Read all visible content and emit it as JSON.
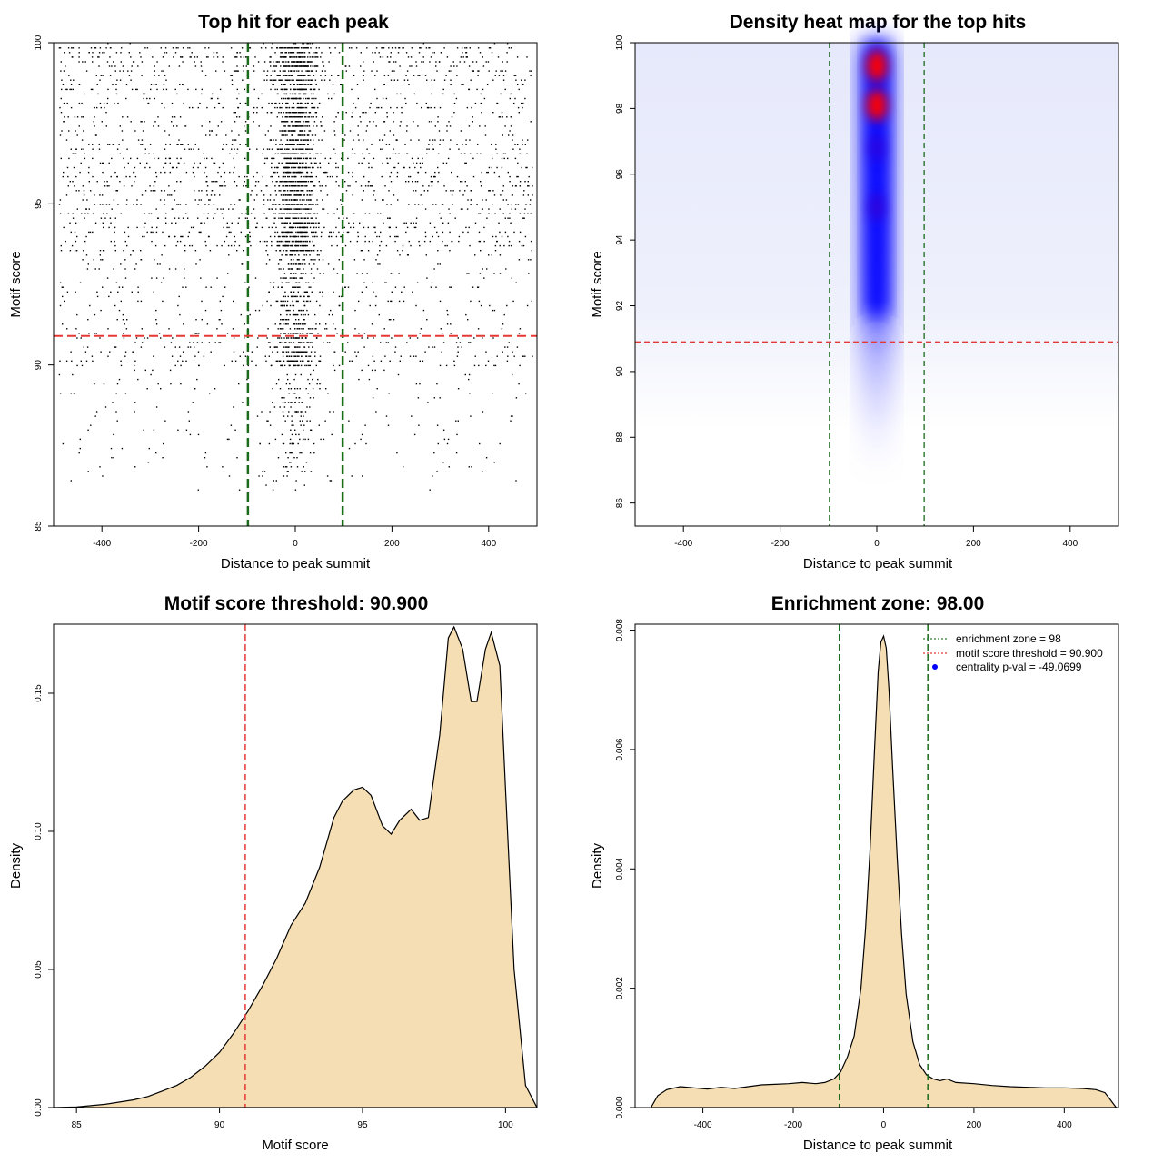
{
  "chart_data": [
    {
      "type": "scatter",
      "title": "Top hit for each peak",
      "xlabel": "Distance to peak summit",
      "ylabel": "Motif score",
      "xlim": [
        -500,
        500
      ],
      "ylim": [
        85,
        100
      ],
      "xticks": [
        -400,
        -200,
        0,
        200,
        400
      ],
      "yticks": [
        85,
        90,
        95,
        100
      ],
      "enrichment_zone": [
        -98,
        98
      ],
      "threshold": 90.9,
      "note": "several thousand points: dense column within +/-100 of summit, sparse background; few points below score 90"
    },
    {
      "type": "heatmap",
      "title": "Density heat map for the top hits",
      "xlabel": "Distance to peak summit",
      "ylabel": "Motif score",
      "xlim": [
        -500,
        500
      ],
      "ylim": [
        85.3,
        100
      ],
      "xticks": [
        -400,
        -200,
        0,
        200,
        400
      ],
      "yticks": [
        86,
        88,
        90,
        92,
        94,
        96,
        98,
        100
      ],
      "enrichment_zone": [
        -98,
        98
      ],
      "threshold": 90.9,
      "hotspots": [
        {
          "x": 0,
          "y": 99.3,
          "intensity": 1.0
        },
        {
          "x": 0,
          "y": 98.1,
          "intensity": 1.0
        },
        {
          "x": 0,
          "y": 95.0,
          "intensity": 0.7
        },
        {
          "x": 0,
          "y": 96.8,
          "intensity": 0.6
        }
      ]
    },
    {
      "type": "area",
      "title": "Motif score threshold: 90.900",
      "xlabel": "Motif score",
      "ylabel": "Density",
      "xlim": [
        84.2,
        101.1
      ],
      "ylim": [
        0,
        0.175
      ],
      "xticks": [
        85,
        90,
        95,
        100
      ],
      "yticks": [
        0.0,
        0.05,
        0.1,
        0.15
      ],
      "ytick_labels": [
        "0.00",
        "0.05",
        "0.10",
        "0.15"
      ],
      "threshold": 90.9,
      "x": [
        84.2,
        85.0,
        86.0,
        87.0,
        87.5,
        88.0,
        88.5,
        89.0,
        89.5,
        90.0,
        90.5,
        91.0,
        91.5,
        92.0,
        92.5,
        93.0,
        93.5,
        94.0,
        94.3,
        94.7,
        95.0,
        95.3,
        95.7,
        96.0,
        96.3,
        96.7,
        97.0,
        97.3,
        97.7,
        98.0,
        98.2,
        98.5,
        98.8,
        99.0,
        99.3,
        99.5,
        99.8,
        100.0,
        100.3,
        100.7,
        101.1
      ],
      "y": [
        0.0,
        0.0002,
        0.0012,
        0.0028,
        0.004,
        0.006,
        0.008,
        0.011,
        0.015,
        0.02,
        0.027,
        0.035,
        0.044,
        0.054,
        0.066,
        0.074,
        0.087,
        0.105,
        0.111,
        0.115,
        0.116,
        0.113,
        0.102,
        0.099,
        0.104,
        0.108,
        0.104,
        0.105,
        0.135,
        0.17,
        0.174,
        0.166,
        0.147,
        0.147,
        0.166,
        0.172,
        0.16,
        0.115,
        0.05,
        0.008,
        0.0
      ]
    },
    {
      "type": "area",
      "title": "Enrichment zone: 98.00",
      "xlabel": "Distance to peak summit",
      "ylabel": "Density",
      "xlim": [
        -550,
        520
      ],
      "ylim": [
        0,
        0.0081
      ],
      "xticks": [
        -400,
        -200,
        0,
        200,
        400
      ],
      "yticks": [
        0.0,
        0.002,
        0.004,
        0.006,
        0.008
      ],
      "ytick_labels": [
        "0.000",
        "0.002",
        "0.004",
        "0.006",
        "0.008"
      ],
      "enrichment_zone": [
        -98,
        98
      ],
      "legend": {
        "position": "top-right",
        "entries": [
          {
            "label": "enrichment zone = 98",
            "color": "#2e7d32",
            "style": "dotted"
          },
          {
            "label": "motif score threshold = 90.900",
            "color": "#e53935",
            "style": "dotted"
          },
          {
            "label": "centrality p-val = -49.0699",
            "color": "#0000ff",
            "style": "point"
          }
        ]
      },
      "x": [
        -515,
        -500,
        -480,
        -450,
        -420,
        -390,
        -360,
        -330,
        -300,
        -270,
        -240,
        -210,
        -180,
        -150,
        -130,
        -110,
        -95,
        -80,
        -65,
        -50,
        -40,
        -30,
        -20,
        -12,
        -6,
        0,
        6,
        12,
        20,
        30,
        40,
        50,
        65,
        80,
        95,
        110,
        125,
        140,
        160,
        200,
        240,
        280,
        320,
        360,
        400,
        440,
        470,
        490,
        500,
        515
      ],
      "y": [
        0.0,
        0.0002,
        0.0003,
        0.00035,
        0.00033,
        0.00031,
        0.00034,
        0.00032,
        0.00035,
        0.00038,
        0.00039,
        0.0004,
        0.00042,
        0.0004,
        0.00042,
        0.00048,
        0.0006,
        0.00085,
        0.0012,
        0.002,
        0.003,
        0.0043,
        0.006,
        0.0073,
        0.0078,
        0.0079,
        0.0077,
        0.007,
        0.0057,
        0.0042,
        0.0029,
        0.0019,
        0.0011,
        0.00072,
        0.00055,
        0.00048,
        0.00045,
        0.00048,
        0.00042,
        0.0004,
        0.00037,
        0.00035,
        0.00034,
        0.00033,
        0.00033,
        0.00032,
        0.0003,
        0.00025,
        0.00015,
        0.0
      ]
    }
  ]
}
